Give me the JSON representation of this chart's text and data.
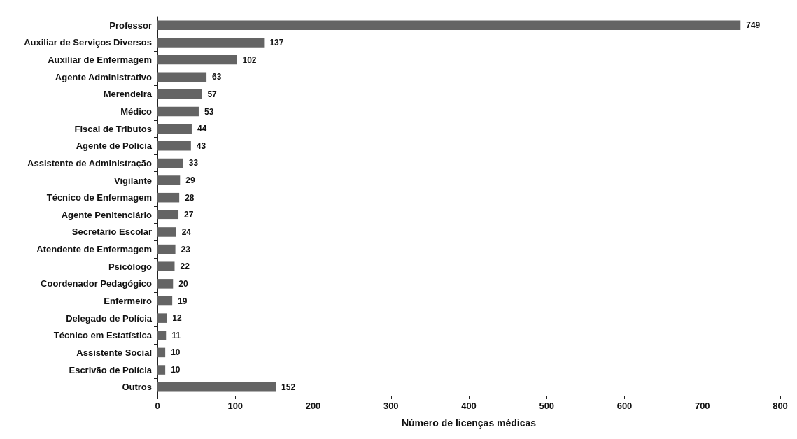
{
  "chart_data": {
    "type": "bar",
    "orientation": "horizontal",
    "xlabel": "Número de licenças médicas",
    "categories": [
      "Professor",
      "Auxiliar de Serviços Diversos",
      "Auxiliar de Enfermagem",
      "Agente Administrativo",
      "Merendeira",
      "Médico",
      "Fiscal de Tributos",
      "Agente de Polícia",
      "Assistente de Administração",
      "Vigilante",
      "Técnico de Enfermagem",
      "Agente Penitenciário",
      "Secretário Escolar",
      "Atendente de Enfermagem",
      "Psicólogo",
      "Coordenador Pedagógico",
      "Enfermeiro",
      "Delegado de Polícia",
      "Técnico em Estatística",
      "Assistente Social",
      "Escrivão de Polícia",
      "Outros"
    ],
    "values": [
      749,
      137,
      102,
      63,
      57,
      53,
      44,
      43,
      33,
      29,
      28,
      27,
      24,
      23,
      22,
      20,
      19,
      12,
      11,
      10,
      10,
      152
    ],
    "color": "#646464",
    "xlim": [
      0,
      800
    ],
    "xticks": [
      0,
      100,
      200,
      300,
      400,
      500,
      600,
      700,
      800
    ],
    "data_labels": true
  }
}
